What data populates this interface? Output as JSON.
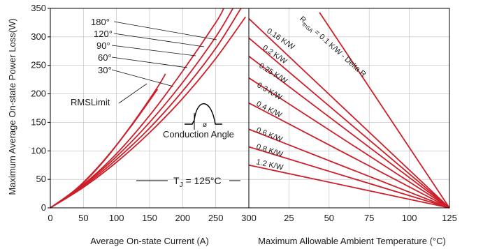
{
  "chart_data": [
    {
      "type": "line",
      "title": "",
      "ylabel": "Maximum Average On-state Power Loss(W)",
      "xlabel": "Average On-state Current (A)",
      "xlim": [
        0,
        300
      ],
      "ylim": [
        0,
        350
      ],
      "xticks": [
        0,
        50,
        100,
        150,
        200,
        250,
        300
      ],
      "yticks": [
        0,
        50,
        100,
        150,
        200,
        250,
        300,
        350
      ],
      "grid": true,
      "series": [
        {
          "name": "RMS Limit",
          "x": [
            0,
            40,
            80,
            120,
            162
          ],
          "y": [
            0,
            34,
            82,
            140,
            208
          ]
        },
        {
          "name": "30°",
          "x": [
            0,
            40,
            80,
            120,
            160,
            174
          ],
          "y": [
            0,
            33,
            81,
            141,
            208,
            235
          ]
        },
        {
          "name": "60°",
          "x": [
            0,
            50,
            100,
            150,
            200,
            250,
            262
          ],
          "y": [
            0,
            41,
            95,
            162,
            240,
            325,
            350
          ]
        },
        {
          "name": "90°",
          "x": [
            0,
            50,
            100,
            150,
            200,
            250,
            276
          ],
          "y": [
            0,
            40,
            90,
            150,
            220,
            300,
            350
          ]
        },
        {
          "name": "120°",
          "x": [
            0,
            50,
            100,
            150,
            200,
            250,
            288
          ],
          "y": [
            0,
            38,
            85,
            140,
            205,
            280,
            350
          ]
        },
        {
          "name": "180°",
          "x": [
            0,
            50,
            100,
            150,
            200,
            250,
            295
          ],
          "y": [
            0,
            36,
            80,
            132,
            192,
            262,
            335
          ]
        }
      ],
      "annotations": {
        "angles": [
          "180°",
          "120°",
          "90°",
          "60°",
          "30°"
        ],
        "rms_limit": "RMSLimit",
        "conduction_angle": "Conduction Angle",
        "phi_symbol": "ø",
        "tj_prefix": "T",
        "tj_sub": "J",
        "tj_suffix": " = 125°C"
      }
    },
    {
      "type": "line",
      "title": "",
      "xlabel": "Maximum Allowable Ambient Temperature (°C)",
      "xlim": [
        0,
        125
      ],
      "ylim": [
        0,
        350
      ],
      "xticks": [
        0,
        25,
        50,
        75,
        100,
        125
      ],
      "grid": true,
      "series": [
        {
          "name": "0.1 K/W - Delta R",
          "x": [
            44,
            125
          ],
          "y": [
            343,
            0
          ]
        },
        {
          "name": "0.16 K/W",
          "x": [
            0,
            125
          ],
          "y": [
            332,
            0
          ]
        },
        {
          "name": "0.2 K/W",
          "x": [
            0,
            125
          ],
          "y": [
            298,
            0
          ]
        },
        {
          "name": "0.25 K/W",
          "x": [
            0,
            125
          ],
          "y": [
            266,
            0
          ]
        },
        {
          "name": "0.3 K/W",
          "x": [
            0,
            125
          ],
          "y": [
            228,
            0
          ]
        },
        {
          "name": "0.4 K/W",
          "x": [
            0,
            125
          ],
          "y": [
            184,
            0
          ]
        },
        {
          "name": "0.6 K/W",
          "x": [
            0,
            125
          ],
          "y": [
            138,
            0
          ]
        },
        {
          "name": "0.8 K/W",
          "x": [
            0,
            125
          ],
          "y": [
            107,
            0
          ]
        },
        {
          "name": "1.2 K/W",
          "x": [
            0,
            125
          ],
          "y": [
            75,
            0
          ]
        }
      ],
      "line_labels": [
        "0.16 K/W",
        "0.2 K/W",
        "0.25 K/W",
        "0.3 K/W",
        "0.4 K/W",
        "0.6 K/W",
        "0.8 K/W",
        "1.2 K/W"
      ],
      "rthsa_label": {
        "prefix": "R",
        "sub": "thSA",
        "suffix": " = 0.1 K/W - Delta R"
      }
    }
  ],
  "colors": {
    "curve": "#cc1f2a",
    "axis": "#000000",
    "grid": "#bbbbbb",
    "text": "#1a1a1a"
  }
}
